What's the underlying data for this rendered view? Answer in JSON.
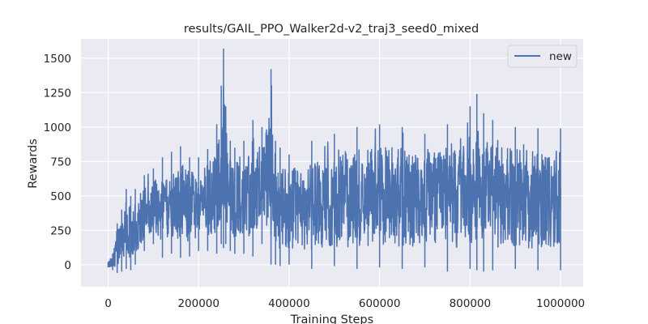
{
  "chart_data": {
    "type": "line",
    "title": "results/GAIL_PPO_Walker2d-v2_traj3_seed0_mixed",
    "xlabel": "Training Steps",
    "ylabel": "Rewards",
    "xlim": [
      -60000,
      1050000
    ],
    "ylim": [
      -160,
      1640
    ],
    "xticks": [
      0,
      200000,
      400000,
      600000,
      800000,
      1000000
    ],
    "xtick_labels": [
      "0",
      "200000",
      "400000",
      "600000",
      "800000",
      "1000000"
    ],
    "yticks": [
      0,
      250,
      500,
      750,
      1000,
      1250,
      1500
    ],
    "ytick_labels": [
      "0",
      "250",
      "500",
      "750",
      "1000",
      "1250",
      "1500"
    ],
    "grid": true,
    "legend_position": "top-right",
    "series": [
      {
        "name": "new",
        "color": "#4c72b0",
        "envelope_x": [
          0,
          10000,
          20000,
          30000,
          40000,
          50000,
          60000,
          80000,
          100000,
          120000,
          140000,
          160000,
          180000,
          200000,
          220000,
          240000,
          250000,
          255000,
          260000,
          270000,
          280000,
          300000,
          320000,
          340000,
          360000,
          370000,
          380000,
          400000,
          450000,
          500000,
          550000,
          600000,
          650000,
          700000,
          750000,
          800000,
          815000,
          830000,
          850000,
          900000,
          950000,
          1000000
        ],
        "envelope_low": [
          -20,
          -40,
          -60,
          -50,
          -30,
          -40,
          0,
          100,
          150,
          50,
          80,
          50,
          60,
          100,
          100,
          80,
          150,
          120,
          150,
          100,
          80,
          80,
          60,
          150,
          0,
          0,
          -10,
          0,
          -30,
          -10,
          -30,
          -20,
          -30,
          -20,
          -50,
          -30,
          -40,
          -50,
          -40,
          -30,
          -40,
          -40
        ],
        "envelope_high": [
          20,
          80,
          300,
          400,
          550,
          500,
          550,
          650,
          700,
          780,
          820,
          860,
          780,
          780,
          840,
          1020,
          1300,
          1570,
          1150,
          900,
          850,
          900,
          1050,
          1000,
          1420,
          900,
          850,
          800,
          900,
          950,
          1000,
          1020,
          1000,
          950,
          1020,
          1150,
          1240,
          1100,
          1050,
          1000,
          990,
          990
        ]
      }
    ]
  }
}
